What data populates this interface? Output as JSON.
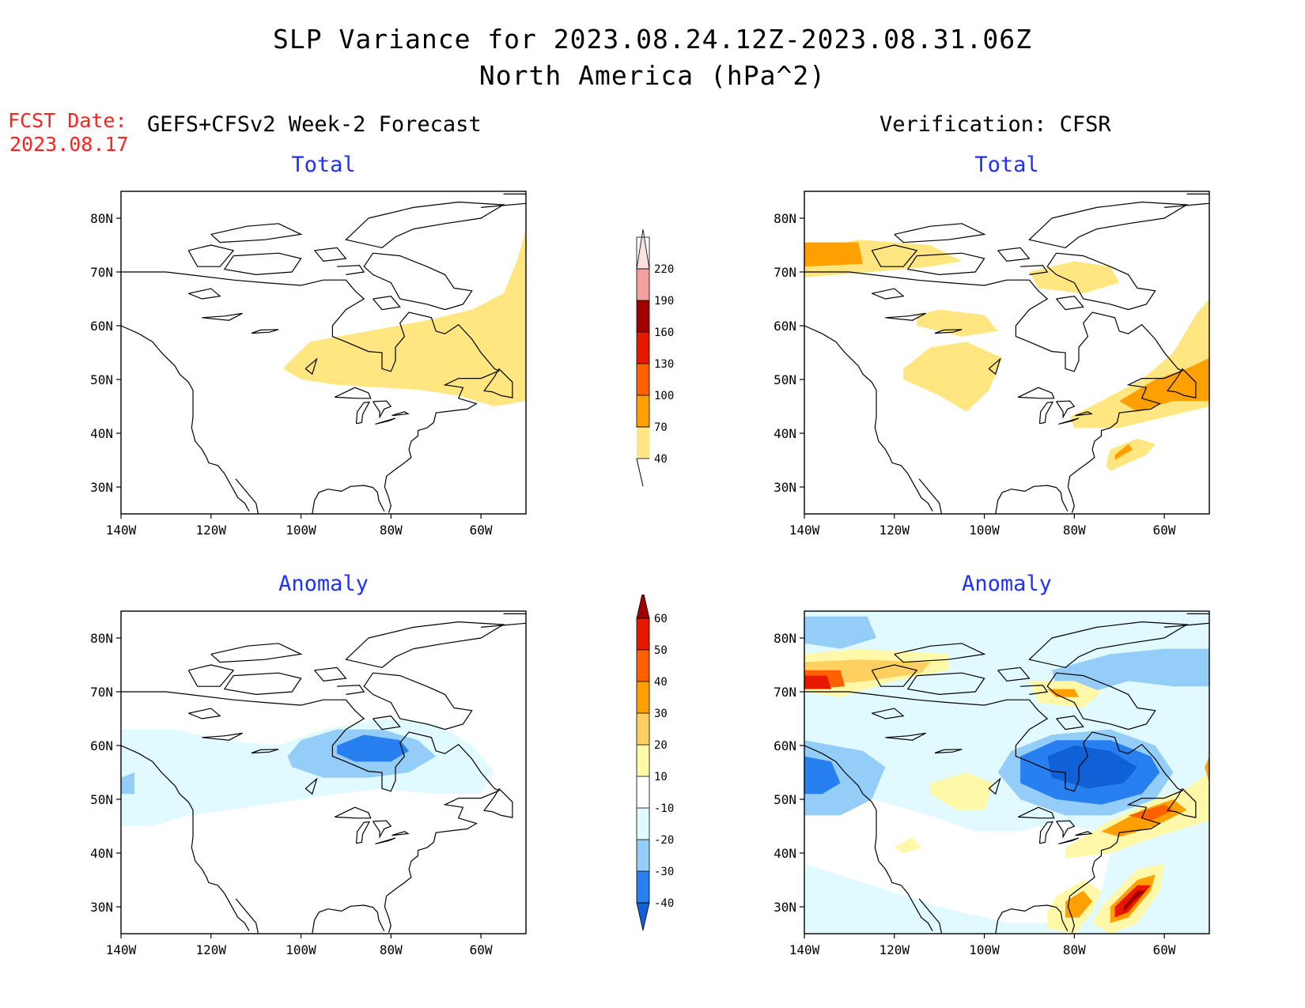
{
  "header": {
    "title_line1": "SLP Variance for 2023.08.24.12Z-2023.08.31.06Z",
    "title_line2": "North America (hPa^2)",
    "fcst_label": "FCST Date:",
    "fcst_date": "2023.08.17",
    "left_column": "GEFS+CFSv2 Week-2 Forecast",
    "right_column": "Verification: CFSR"
  },
  "panels": {
    "tl_title": "Total",
    "tr_title": "Total",
    "bl_title": "Anomaly",
    "br_title": "Anomaly"
  },
  "axes": {
    "lat_labels": [
      "80N",
      "70N",
      "60N",
      "50N",
      "40N",
      "30N"
    ],
    "lon_labels": [
      "140W",
      "120W",
      "100W",
      "80W",
      "60W"
    ],
    "lat_range": [
      25,
      85
    ],
    "lon_range": [
      -140,
      -50
    ]
  },
  "colorbars": {
    "total": {
      "levels": [
        "40",
        "70",
        "100",
        "130",
        "160",
        "190",
        "220"
      ],
      "colors": [
        "#ffe680",
        "#ffa000",
        "#ff6000",
        "#e81800",
        "#a00000",
        "#f4a0a0",
        "#fde0e0"
      ]
    },
    "anomaly": {
      "levels": [
        "-40",
        "-30",
        "-20",
        "-10",
        "10",
        "20",
        "30",
        "40",
        "50",
        "60"
      ],
      "colors": [
        "#1060d8",
        "#2880f0",
        "#94cef8",
        "#e0faff",
        "#ffffff",
        "#fff8a8",
        "#ffd060",
        "#ffa000",
        "#ff6000",
        "#e81800",
        "#a00000"
      ]
    }
  }
}
